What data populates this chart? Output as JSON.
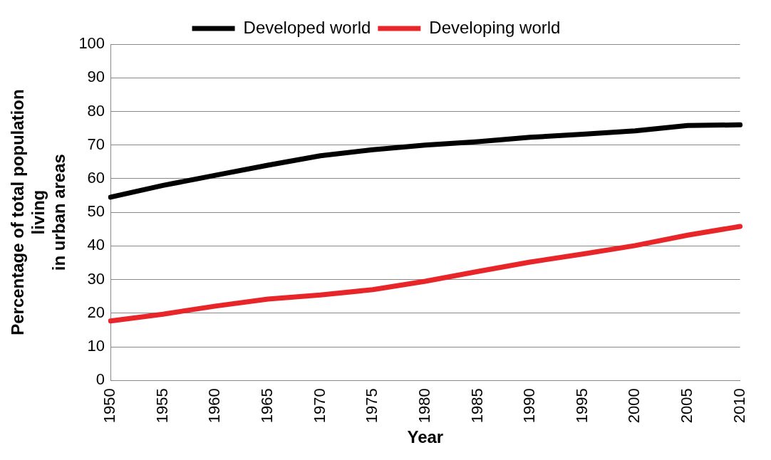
{
  "chart_data": {
    "type": "line",
    "xlabel": "Year",
    "ylabel": "Percentage of total population\nliving\nin urban areas",
    "categories": [
      "1950",
      "1955",
      "1960",
      "1965",
      "1970",
      "1975",
      "1980",
      "1985",
      "1990",
      "1995",
      "2000",
      "2005",
      "2010"
    ],
    "series": [
      {
        "name": "Developed world",
        "color": "#000000",
        "values": [
          54.5,
          58,
          61,
          64,
          66.8,
          68.6,
          70,
          71,
          72.3,
          73.2,
          74.2,
          75.8,
          76
        ]
      },
      {
        "name": "Developing world",
        "color": "#e8262a",
        "values": [
          17.7,
          19.7,
          22.1,
          24.2,
          25.4,
          27,
          29.5,
          32.4,
          35.2,
          37.6,
          40.1,
          43.2,
          45.8
        ]
      }
    ],
    "ylim": [
      0,
      100
    ],
    "yticks": [
      0,
      10,
      20,
      30,
      40,
      50,
      60,
      70,
      80,
      90,
      100
    ],
    "grid": "y",
    "legend": "top",
    "marker": "none",
    "line_style": "solid"
  }
}
